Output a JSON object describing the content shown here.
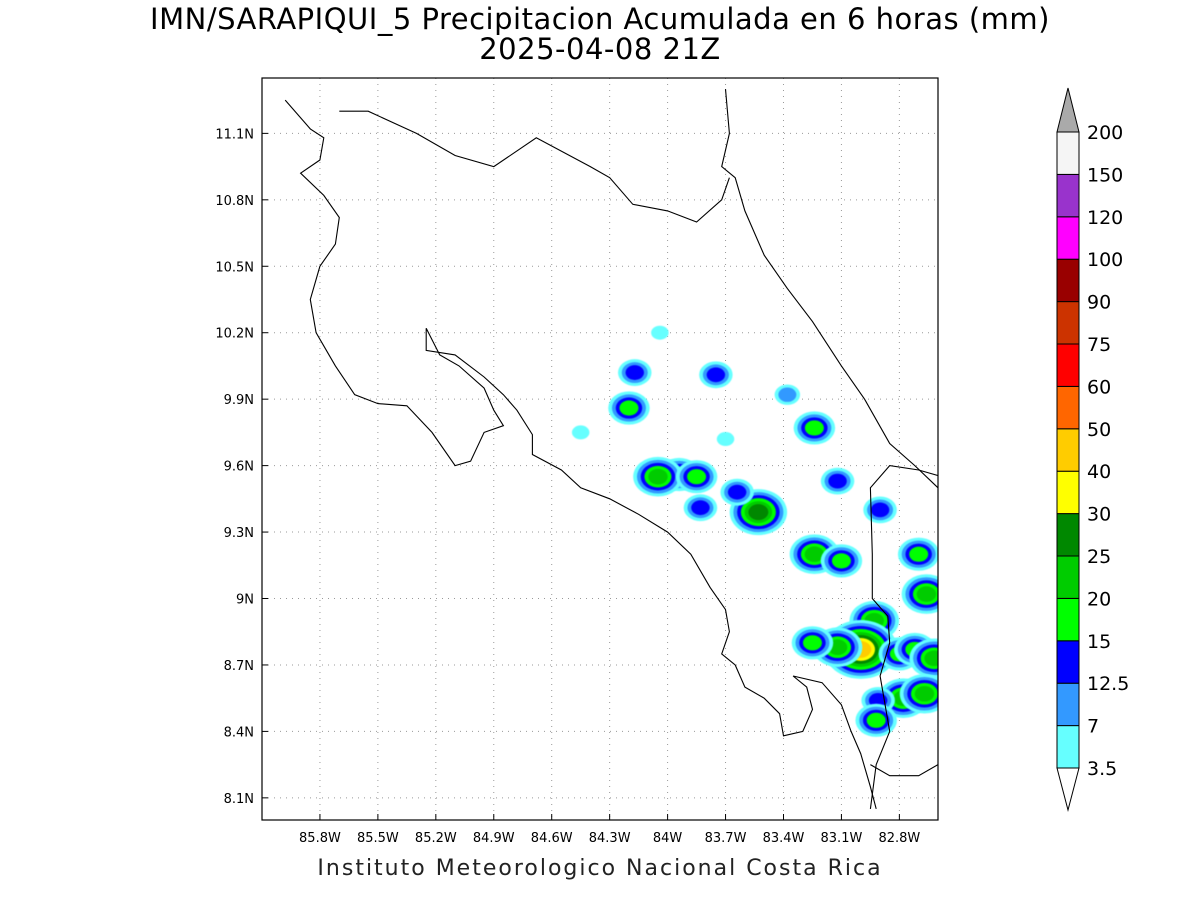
{
  "title": {
    "line1": "IMN/SARAPIQUI_5 Precipitacion Acumulada en 6 horas (mm)",
    "line2": "2025-04-08 21Z"
  },
  "footer": "Instituto Meteorologico Nacional Costa Rica",
  "map": {
    "lon_range": [
      -86.1,
      -82.6
    ],
    "lat_range": [
      8.0,
      11.35
    ],
    "lon_ticks": [
      -85.8,
      -85.5,
      -85.2,
      -84.9,
      -84.6,
      -84.3,
      -84.0,
      -83.7,
      -83.4,
      -83.1,
      -82.8
    ],
    "lon_tick_labels": [
      "85.8W",
      "85.5W",
      "85.2W",
      "84.9W",
      "84.6W",
      "84.3W",
      "84W",
      "83.7W",
      "83.4W",
      "83.1W",
      "82.8W"
    ],
    "lat_ticks": [
      8.1,
      8.4,
      8.7,
      9.0,
      9.3,
      9.6,
      9.9,
      10.2,
      10.5,
      10.8,
      11.1
    ],
    "lat_tick_labels": [
      "8.1N",
      "8.4N",
      "8.7N",
      "9N",
      "9.3N",
      "9.6N",
      "9.9N",
      "10.2N",
      "10.5N",
      "10.8N",
      "11.1N"
    ],
    "grid": true,
    "coastline": [
      [
        -85.98,
        11.25
      ],
      [
        -85.85,
        11.12
      ],
      [
        -85.78,
        11.08
      ],
      [
        -85.8,
        10.98
      ],
      [
        -85.9,
        10.92
      ],
      [
        -85.78,
        10.82
      ],
      [
        -85.7,
        10.72
      ],
      [
        -85.72,
        10.6
      ],
      [
        -85.8,
        10.5
      ],
      [
        -85.85,
        10.35
      ],
      [
        -85.82,
        10.2
      ],
      [
        -85.72,
        10.05
      ],
      [
        -85.62,
        9.92
      ],
      [
        -85.5,
        9.88
      ],
      [
        -85.35,
        9.87
      ],
      [
        -85.22,
        9.75
      ],
      [
        -85.1,
        9.6
      ],
      [
        -85.02,
        9.62
      ],
      [
        -84.95,
        9.75
      ],
      [
        -84.85,
        9.78
      ],
      [
        -84.9,
        9.85
      ],
      [
        -84.95,
        9.95
      ],
      [
        -85.08,
        10.05
      ],
      [
        -85.18,
        10.1
      ],
      [
        -85.25,
        10.22
      ],
      [
        -85.25,
        10.12
      ],
      [
        -85.1,
        10.1
      ],
      [
        -84.95,
        10.0
      ],
      [
        -84.85,
        9.92
      ],
      [
        -84.78,
        9.85
      ],
      [
        -84.7,
        9.74
      ],
      [
        -84.7,
        9.65
      ],
      [
        -84.55,
        9.58
      ],
      [
        -84.45,
        9.5
      ],
      [
        -84.3,
        9.45
      ],
      [
        -84.15,
        9.38
      ],
      [
        -84.0,
        9.3
      ],
      [
        -83.88,
        9.2
      ],
      [
        -83.78,
        9.05
      ],
      [
        -83.7,
        8.95
      ],
      [
        -83.68,
        8.85
      ],
      [
        -83.72,
        8.75
      ],
      [
        -83.65,
        8.7
      ],
      [
        -83.6,
        8.6
      ],
      [
        -83.5,
        8.55
      ],
      [
        -83.42,
        8.48
      ],
      [
        -83.4,
        8.38
      ],
      [
        -83.3,
        8.4
      ],
      [
        -83.25,
        8.5
      ],
      [
        -83.28,
        8.6
      ],
      [
        -83.35,
        8.65
      ],
      [
        -83.2,
        8.62
      ],
      [
        -83.1,
        8.52
      ],
      [
        -83.05,
        8.4
      ],
      [
        -83.0,
        8.3
      ],
      [
        -82.95,
        8.15
      ],
      [
        -82.92,
        8.05
      ]
    ],
    "caribbean_coast": [
      [
        -83.7,
        11.3
      ],
      [
        -83.68,
        11.1
      ],
      [
        -83.72,
        10.95
      ],
      [
        -83.65,
        10.9
      ],
      [
        -83.6,
        10.75
      ],
      [
        -83.5,
        10.55
      ],
      [
        -83.38,
        10.4
      ],
      [
        -83.25,
        10.25
      ],
      [
        -83.1,
        10.05
      ],
      [
        -82.98,
        9.9
      ],
      [
        -82.85,
        9.7
      ],
      [
        -82.72,
        9.6
      ],
      [
        -82.6,
        9.5
      ]
    ],
    "nicaragua_border": [
      [
        -85.7,
        11.2
      ],
      [
        -85.55,
        11.2
      ],
      [
        -85.3,
        11.1
      ],
      [
        -85.1,
        11.0
      ],
      [
        -84.9,
        10.95
      ],
      [
        -84.68,
        11.08
      ],
      [
        -84.4,
        10.95
      ],
      [
        -84.3,
        10.9
      ],
      [
        -84.18,
        10.78
      ],
      [
        -84.0,
        10.75
      ],
      [
        -83.85,
        10.7
      ],
      [
        -83.72,
        10.8
      ],
      [
        -83.68,
        10.9
      ]
    ],
    "panama_border": [
      [
        -82.58,
        9.55
      ],
      [
        -82.7,
        9.58
      ],
      [
        -82.85,
        9.6
      ],
      [
        -82.95,
        9.5
      ],
      [
        -82.94,
        9.2
      ],
      [
        -82.94,
        9.0
      ],
      [
        -82.86,
        8.92
      ],
      [
        -82.85,
        8.8
      ],
      [
        -82.9,
        8.65
      ],
      [
        -82.85,
        8.4
      ],
      [
        -82.92,
        8.25
      ],
      [
        -82.95,
        8.05
      ]
    ],
    "panama_coast": [
      [
        -82.95,
        8.25
      ],
      [
        -82.85,
        8.2
      ],
      [
        -82.7,
        8.2
      ],
      [
        -82.6,
        8.25
      ]
    ]
  },
  "colorbar": {
    "labels": [
      "3.5",
      "7",
      "12.5",
      "15",
      "20",
      "25",
      "30",
      "40",
      "50",
      "60",
      "75",
      "90",
      "100",
      "120",
      "150",
      "200"
    ],
    "colors": [
      "#66ffff",
      "#3399ff",
      "#0000ff",
      "#00ff00",
      "#00cc00",
      "#008800",
      "#ffff00",
      "#ffcc00",
      "#ff6600",
      "#ff0000",
      "#cc3300",
      "#990000",
      "#ff00ff",
      "#9933cc",
      "#f5f5f5"
    ],
    "over_color": "#aaaaaa",
    "under_color": "#ffffff"
  },
  "precip_cells": [
    {
      "lon": -84.17,
      "lat": 10.02,
      "level": 2
    },
    {
      "lon": -84.2,
      "lat": 9.86,
      "level": 3
    },
    {
      "lon": -83.75,
      "lat": 10.01,
      "level": 2
    },
    {
      "lon": -84.04,
      "lat": 10.2,
      "level": 0
    },
    {
      "lon": -83.94,
      "lat": 9.56,
      "level": 3
    },
    {
      "lon": -84.05,
      "lat": 9.55,
      "level": 4
    },
    {
      "lon": -83.85,
      "lat": 9.55,
      "level": 3
    },
    {
      "lon": -83.53,
      "lat": 9.39,
      "level": 5
    },
    {
      "lon": -83.64,
      "lat": 9.48,
      "level": 2
    },
    {
      "lon": -83.83,
      "lat": 9.41,
      "level": 2
    },
    {
      "lon": -83.38,
      "lat": 9.92,
      "level": 1
    },
    {
      "lon": -83.24,
      "lat": 9.77,
      "level": 3
    },
    {
      "lon": -83.12,
      "lat": 9.53,
      "level": 2
    },
    {
      "lon": -83.24,
      "lat": 9.2,
      "level": 4
    },
    {
      "lon": -83.1,
      "lat": 9.17,
      "level": 3
    },
    {
      "lon": -82.9,
      "lat": 9.4,
      "level": 2
    },
    {
      "lon": -82.7,
      "lat": 9.2,
      "level": 3
    },
    {
      "lon": -82.66,
      "lat": 9.02,
      "level": 4
    },
    {
      "lon": -82.93,
      "lat": 8.9,
      "level": 4
    },
    {
      "lon": -83.0,
      "lat": 8.77,
      "level": 7
    },
    {
      "lon": -83.12,
      "lat": 8.78,
      "level": 4
    },
    {
      "lon": -83.25,
      "lat": 8.8,
      "level": 3
    },
    {
      "lon": -82.8,
      "lat": 8.75,
      "level": 3
    },
    {
      "lon": -82.72,
      "lat": 8.77,
      "level": 3
    },
    {
      "lon": -82.62,
      "lat": 8.73,
      "level": 4
    },
    {
      "lon": -82.78,
      "lat": 8.55,
      "level": 4
    },
    {
      "lon": -82.67,
      "lat": 8.57,
      "level": 4
    },
    {
      "lon": -82.91,
      "lat": 8.54,
      "level": 2
    },
    {
      "lon": -82.92,
      "lat": 8.45,
      "level": 3
    },
    {
      "lon": -84.45,
      "lat": 9.75,
      "level": 0
    },
    {
      "lon": -83.7,
      "lat": 9.72,
      "level": 0
    }
  ]
}
